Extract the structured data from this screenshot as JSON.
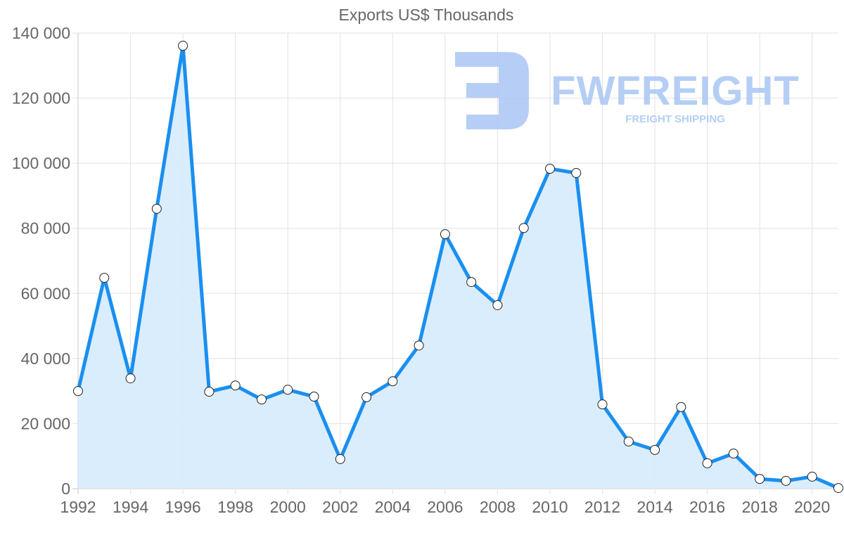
{
  "chart_data": {
    "type": "area",
    "title": "Exports US$ Thousands",
    "xlabel": "",
    "ylabel": "",
    "ylim": [
      0,
      140000
    ],
    "grid": true,
    "legend": "none",
    "y_ticks": [
      0,
      20000,
      40000,
      60000,
      80000,
      100000,
      120000,
      140000
    ],
    "y_tick_labels": [
      "0",
      "20 000",
      "40 000",
      "60 000",
      "80 000",
      "100 000",
      "120 000",
      "140 000"
    ],
    "x_tick_labels": [
      "1992",
      "1994",
      "1996",
      "1998",
      "2000",
      "2002",
      "2004",
      "2006",
      "2008",
      "2010",
      "2012",
      "2014",
      "2016",
      "2018",
      "2020"
    ],
    "x": [
      1992,
      1993,
      1994,
      1995,
      1996,
      1997,
      1998,
      1999,
      2000,
      2001,
      2002,
      2003,
      2004,
      2005,
      2006,
      2007,
      2008,
      2009,
      2010,
      2011,
      2012,
      2013,
      2014,
      2015,
      2016,
      2017,
      2018,
      2019,
      2020,
      2021
    ],
    "series": [
      {
        "name": "Exports US$ Thousands",
        "values": [
          30000,
          64800,
          33900,
          86000,
          136100,
          29800,
          31700,
          27400,
          30400,
          28300,
          9100,
          28100,
          33000,
          44000,
          78200,
          63500,
          56400,
          80100,
          98300,
          97000,
          25900,
          14500,
          11900,
          25100,
          7800,
          10800,
          3000,
          2400,
          3700,
          200
        ]
      }
    ],
    "colors": {
      "line": "#1a8ff0",
      "fill": "#d8ecfd",
      "grid": "#e2e2e2",
      "text": "#666666",
      "watermark": "#a9c6f4"
    }
  },
  "watermark": {
    "brand": "FWFREIGHT",
    "tagline": "FREIGHT SHIPPING"
  }
}
